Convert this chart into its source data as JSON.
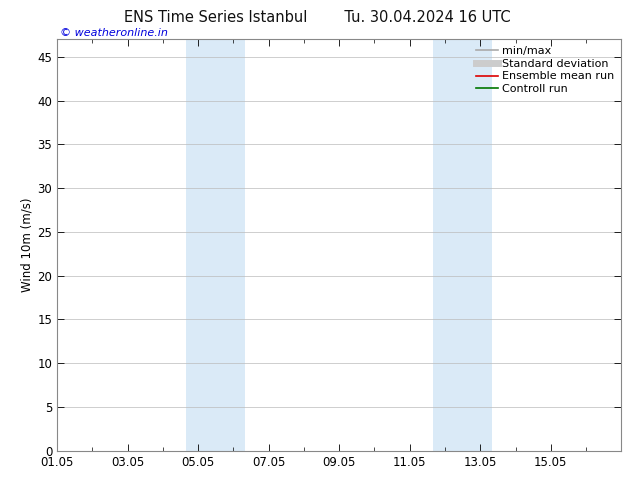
{
  "title_left": "ENS Time Series Istanbul",
  "title_right": "Tu. 30.04.2024 16 UTC",
  "ylabel": "Wind 10m (m/s)",
  "watermark": "© weatheronline.in",
  "watermark_color": "#0000dd",
  "xlim": [
    0,
    16
  ],
  "ylim": [
    0,
    47
  ],
  "yticks": [
    0,
    5,
    10,
    15,
    20,
    25,
    30,
    35,
    40,
    45
  ],
  "xtick_labels": [
    "01.05",
    "03.05",
    "05.05",
    "07.05",
    "09.05",
    "11.05",
    "13.05",
    "15.05"
  ],
  "xtick_positions": [
    0,
    2,
    4,
    6,
    8,
    10,
    12,
    14
  ],
  "bg_color": "#ffffff",
  "plot_bg_color": "#ffffff",
  "shaded_bands": [
    {
      "xmin": 3.67,
      "xmax": 5.33,
      "color": "#daeaf7"
    },
    {
      "xmin": 10.67,
      "xmax": 12.33,
      "color": "#daeaf7"
    }
  ],
  "legend_items": [
    {
      "label": "min/max",
      "color": "#aaaaaa",
      "lw": 1.2
    },
    {
      "label": "Standard deviation",
      "color": "#cccccc",
      "lw": 5
    },
    {
      "label": "Ensemble mean run",
      "color": "#dd0000",
      "lw": 1.2
    },
    {
      "label": "Controll run",
      "color": "#007700",
      "lw": 1.2
    }
  ],
  "grid_color": "#bbbbbb",
  "spine_color": "#888888",
  "tick_color": "#000000",
  "font_size": 8.5,
  "title_font_size": 10.5,
  "watermark_font_size": 8
}
